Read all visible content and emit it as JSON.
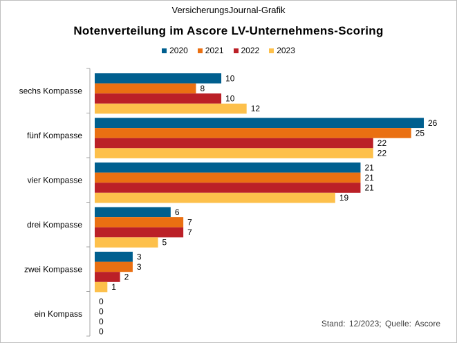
{
  "header": {
    "source": "VersicherungsJournal-Grafik",
    "title": "Notenverteilung im Ascore LV-Unternehmens-Scoring"
  },
  "footnote": "Stand: 12/2023; Quelle: Ascore",
  "chart_data": {
    "type": "bar",
    "orientation": "horizontal",
    "title": "Notenverteilung im Ascore LV-Unternehmens-Scoring",
    "categories": [
      "sechs Kompasse",
      "fünf Kompasse",
      "vier Kompasse",
      "drei Kompasse",
      "zwei Kompasse",
      "ein Kompass"
    ],
    "series": [
      {
        "name": "2020",
        "color": "#005f8f",
        "values": [
          10,
          26,
          21,
          6,
          3,
          0
        ]
      },
      {
        "name": "2021",
        "color": "#ea7012",
        "values": [
          8,
          25,
          21,
          7,
          3,
          0
        ]
      },
      {
        "name": "2022",
        "color": "#bb2027",
        "values": [
          10,
          22,
          21,
          7,
          2,
          0
        ]
      },
      {
        "name": "2023",
        "color": "#fdc04b",
        "values": [
          12,
          22,
          19,
          5,
          1,
          0
        ]
      }
    ],
    "xlim": [
      0,
      26
    ],
    "grid": false,
    "legend_position": "top",
    "data_labels": true
  }
}
